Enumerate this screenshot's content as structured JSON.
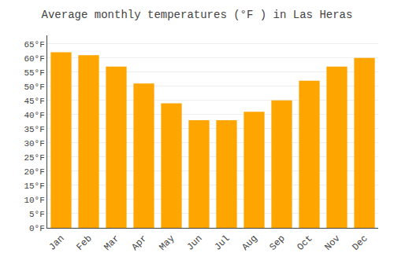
{
  "chart_data": {
    "type": "bar",
    "title": "Average monthly temperatures (°F ) in Las Heras",
    "categories": [
      "Jan",
      "Feb",
      "Mar",
      "Apr",
      "May",
      "Jun",
      "Jul",
      "Aug",
      "Sep",
      "Oct",
      "Nov",
      "Dec"
    ],
    "values": [
      62,
      61,
      57,
      51,
      44,
      38,
      38,
      41,
      45,
      52,
      57,
      60
    ],
    "color": "#FFA500",
    "ylim": [
      0,
      68
    ],
    "yticks": [
      {
        "value": 0,
        "label": "0°F"
      },
      {
        "value": 5,
        "label": "5°F"
      },
      {
        "value": 10,
        "label": "10°F"
      },
      {
        "value": 15,
        "label": "15°F"
      },
      {
        "value": 20,
        "label": "20°F"
      },
      {
        "value": 25,
        "label": "25°F"
      },
      {
        "value": 30,
        "label": "30°F"
      },
      {
        "value": 35,
        "label": "35°F"
      },
      {
        "value": 40,
        "label": "40°F"
      },
      {
        "value": 45,
        "label": "45°F"
      },
      {
        "value": 50,
        "label": "50°F"
      },
      {
        "value": 55,
        "label": "55°F"
      },
      {
        "value": 60,
        "label": "60°F"
      },
      {
        "value": 65,
        "label": "65°F"
      }
    ],
    "grid": true
  }
}
